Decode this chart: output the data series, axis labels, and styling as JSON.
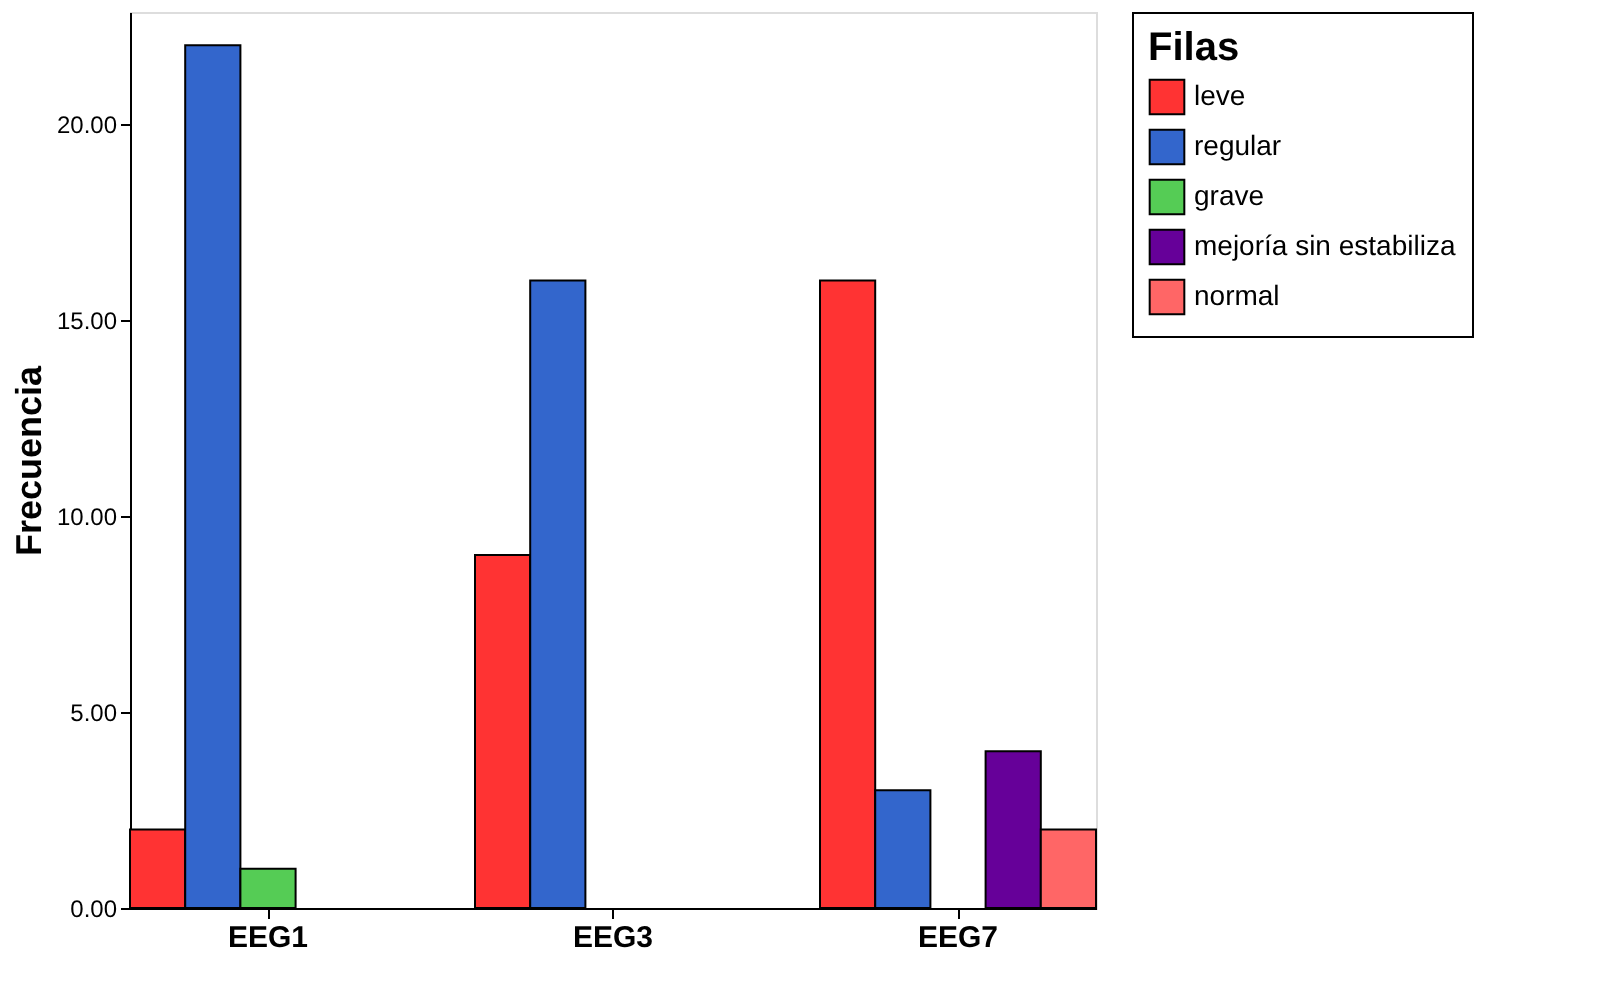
{
  "chart_data": {
    "type": "bar",
    "ylabel": "Frecuencia",
    "legend_title": "Filas",
    "legend": "right",
    "grid": false,
    "categories": [
      "EEG1",
      "EEG3",
      "EEG7"
    ],
    "series": [
      {
        "name": "leve",
        "color": "#ff3333",
        "values": [
          2,
          9,
          16
        ]
      },
      {
        "name": "regular",
        "color": "#3366cc",
        "values": [
          22,
          16,
          3
        ]
      },
      {
        "name": "grave",
        "color": "#55cc55",
        "values": [
          1,
          null,
          null
        ]
      },
      {
        "name": "mejoría sin estabiliza",
        "color": "#660099",
        "values": [
          null,
          null,
          4
        ]
      },
      {
        "name": "normal",
        "color": "#ff6666",
        "values": [
          null,
          null,
          2
        ]
      }
    ],
    "ylim": [
      0,
      22.85
    ],
    "yticks": [
      {
        "value": 0,
        "label": "0.00"
      },
      {
        "value": 5,
        "label": "5.00"
      },
      {
        "value": 10,
        "label": "10.00"
      },
      {
        "value": 15,
        "label": "15.00"
      },
      {
        "value": 20,
        "label": "20.00"
      }
    ]
  }
}
